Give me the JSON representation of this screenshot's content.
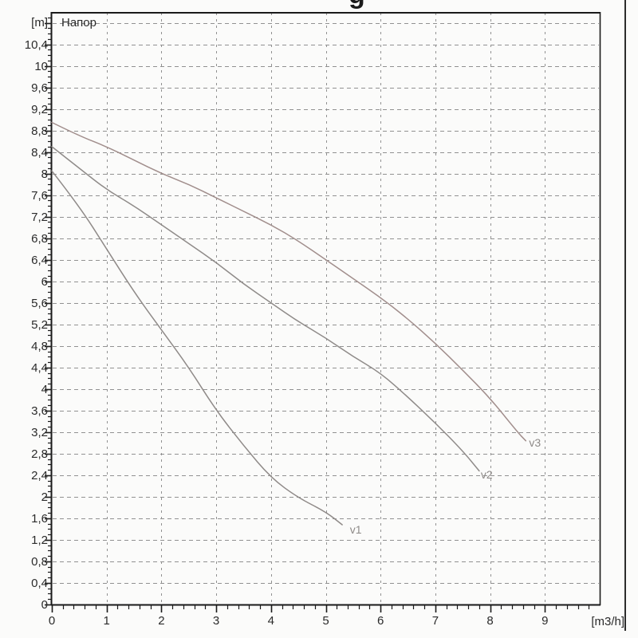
{
  "title_fragment": "g",
  "chart_data": {
    "type": "line",
    "title": "",
    "xlabel": "[m3/h]",
    "ylabel_unit": "[m]",
    "ylabel_name": "Напор",
    "xlim": [
      0,
      10
    ],
    "ylim": [
      0,
      11
    ],
    "grid": true,
    "grid_color": "#919191",
    "axis_color": "#1a1a1a",
    "y_major_step": 0.4,
    "y_minor_step": 0.1,
    "x_major_step": 1,
    "x_minor_step": 0.2,
    "y_tick_labels": [
      "0",
      "0,4",
      "0,8",
      "1,2",
      "1,6",
      "2",
      "2,4",
      "2,8",
      "3,2",
      "3,6",
      "4",
      "4,4",
      "4,8",
      "5,2",
      "5,6",
      "6",
      "6,4",
      "6,8",
      "7,2",
      "7,6",
      "8",
      "8,4",
      "8,8",
      "9,2",
      "9,6",
      "10",
      "10,4"
    ],
    "x_tick_labels": [
      "0",
      "1",
      "2",
      "3",
      "4",
      "5",
      "6",
      "7",
      "8",
      "9"
    ],
    "legend_position": "curve-end-labels",
    "series": [
      {
        "name": "v1",
        "color": "#8f8a88",
        "label_pos": [
          5.44,
          1.32
        ],
        "points": [
          [
            0,
            8.05
          ],
          [
            0.5,
            7.4
          ],
          [
            1,
            6.6
          ],
          [
            1.5,
            5.8
          ],
          [
            2,
            5.1
          ],
          [
            2.5,
            4.4
          ],
          [
            3,
            3.6
          ],
          [
            3.5,
            2.95
          ],
          [
            4,
            2.35
          ],
          [
            4.5,
            1.98
          ],
          [
            5,
            1.72
          ],
          [
            5.3,
            1.48
          ]
        ]
      },
      {
        "name": "v2",
        "color": "#8f8b89",
        "label_pos": [
          7.83,
          2.34
        ],
        "points": [
          [
            0,
            8.5
          ],
          [
            0.5,
            8.1
          ],
          [
            1,
            7.7
          ],
          [
            1.5,
            7.4
          ],
          [
            2,
            7.05
          ],
          [
            2.5,
            6.7
          ],
          [
            3,
            6.35
          ],
          [
            3.5,
            5.95
          ],
          [
            4,
            5.6
          ],
          [
            4.5,
            5.25
          ],
          [
            5,
            4.95
          ],
          [
            5.5,
            4.6
          ],
          [
            6,
            4.3
          ],
          [
            6.5,
            3.85
          ],
          [
            7,
            3.37
          ],
          [
            7.5,
            2.85
          ],
          [
            7.8,
            2.48
          ]
        ]
      },
      {
        "name": "v3",
        "color": "#a18e8c",
        "label_pos": [
          8.71,
          2.93
        ],
        "points": [
          [
            0,
            8.95
          ],
          [
            0.5,
            8.7
          ],
          [
            1,
            8.5
          ],
          [
            1.5,
            8.25
          ],
          [
            2,
            8.0
          ],
          [
            2.5,
            7.8
          ],
          [
            3,
            7.55
          ],
          [
            3.5,
            7.3
          ],
          [
            4,
            7.05
          ],
          [
            4.5,
            6.75
          ],
          [
            5,
            6.4
          ],
          [
            5.5,
            6.05
          ],
          [
            6,
            5.7
          ],
          [
            6.5,
            5.3
          ],
          [
            7,
            4.85
          ],
          [
            7.5,
            4.35
          ],
          [
            8,
            3.83
          ],
          [
            8.5,
            3.2
          ],
          [
            8.65,
            3.04
          ]
        ]
      }
    ]
  }
}
